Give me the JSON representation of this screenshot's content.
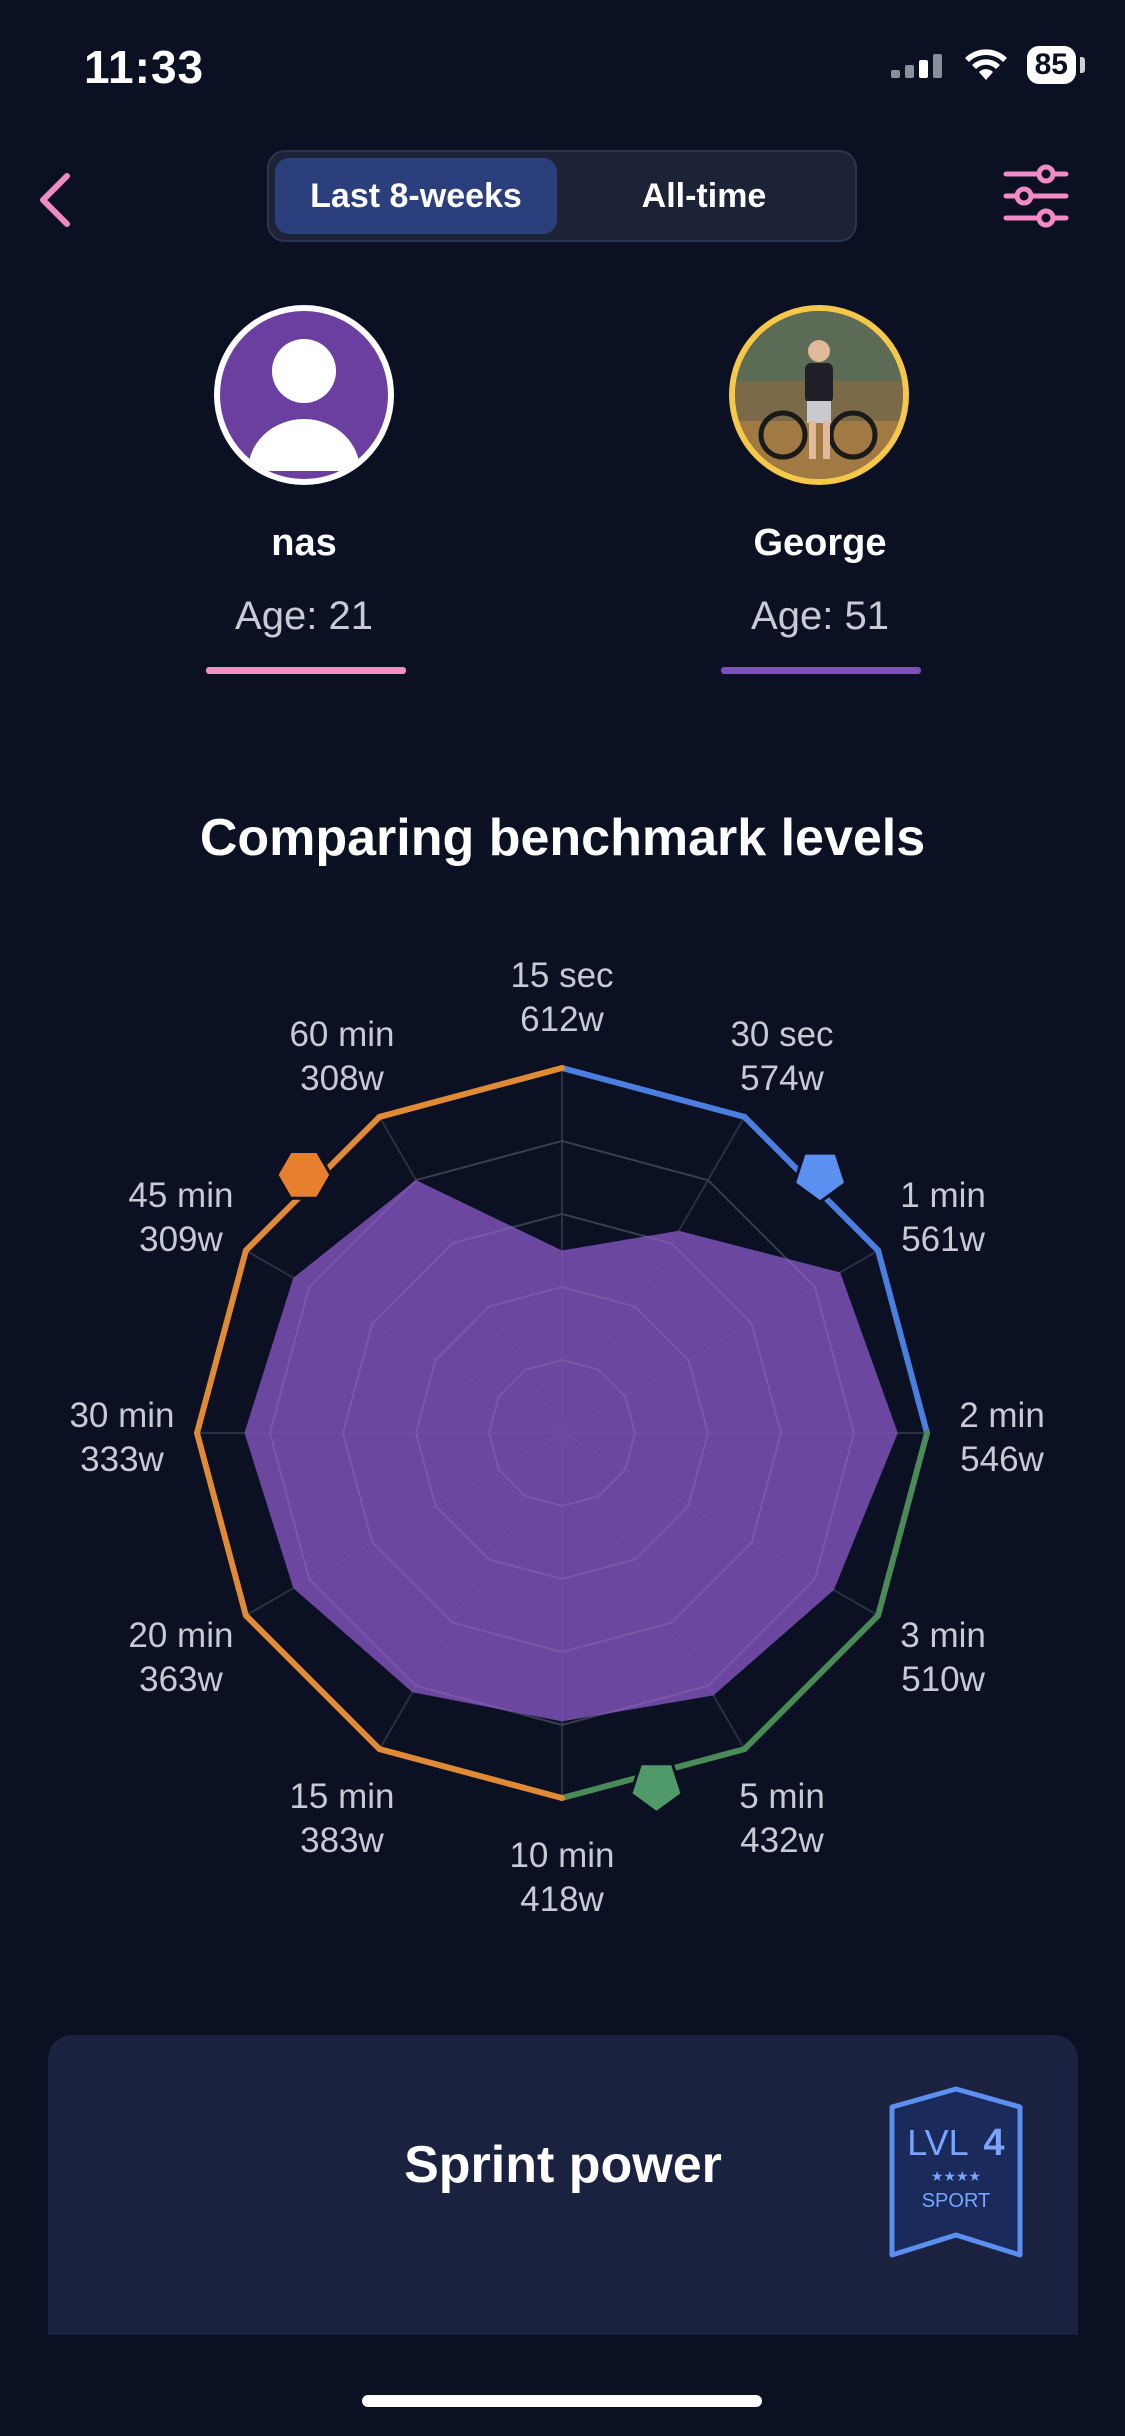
{
  "status_bar": {
    "time": "11:33",
    "battery": "85"
  },
  "header": {
    "tabs": [
      {
        "label": "Last 8-weeks",
        "active": true
      },
      {
        "label": "All-time",
        "active": false
      }
    ]
  },
  "profiles": [
    {
      "name": "nas",
      "age": "Age: 21",
      "color": "#f48fc5"
    },
    {
      "name": "George",
      "age": "Age: 51",
      "color": "#7b4fc2"
    }
  ],
  "chart_data": {
    "type": "radar",
    "title": "Comparing benchmark levels",
    "axes": [
      {
        "duration": "15 sec",
        "watts": "612w"
      },
      {
        "duration": "30 sec",
        "watts": "574w"
      },
      {
        "duration": "1 min",
        "watts": "561w"
      },
      {
        "duration": "2 min",
        "watts": "546w"
      },
      {
        "duration": "3 min",
        "watts": "510w"
      },
      {
        "duration": "5 min",
        "watts": "432w"
      },
      {
        "duration": "10 min",
        "watts": "418w"
      },
      {
        "duration": "15 min",
        "watts": "383w"
      },
      {
        "duration": "20 min",
        "watts": "363w"
      },
      {
        "duration": "30 min",
        "watts": "333w"
      },
      {
        "duration": "45 min",
        "watts": "309w"
      },
      {
        "duration": "60 min",
        "watts": "308w"
      }
    ],
    "values": [
      0.5,
      0.64,
      0.88,
      0.92,
      0.86,
      0.83,
      0.79,
      0.82,
      0.85,
      0.87,
      0.85,
      0.8
    ],
    "outer_ring_colors": [
      "#4a7fe0",
      "#4a7fe0",
      "#4a7fe0",
      "#4a8a58",
      "#4a8a58",
      "#4a8a58",
      "#e08a35",
      "#e08a35",
      "#e08a35",
      "#e08a35",
      "#e08a35",
      "#e08a35"
    ],
    "fill_color": "#7a4fb0",
    "markers": [
      {
        "axis_index": 1,
        "shape": "pentagon",
        "color": "#5b8ff0"
      },
      {
        "axis_index": 5,
        "shape": "pentagon",
        "color": "#4f9a68"
      },
      {
        "axis_index": 10,
        "shape": "hexagon",
        "color": "#e6802e"
      }
    ]
  },
  "card": {
    "title": "Sprint power",
    "badge": {
      "level": "LVL",
      "number": "4",
      "stars": "★★★★",
      "label": "SPORT"
    }
  }
}
